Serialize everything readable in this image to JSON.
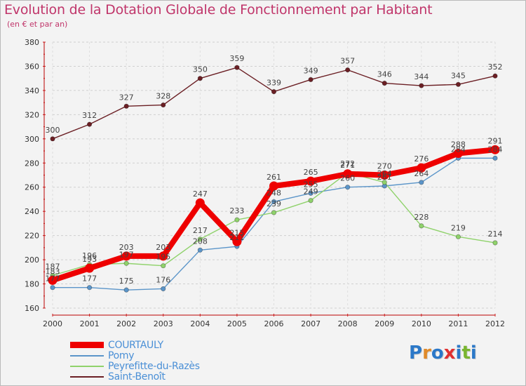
{
  "header": {
    "title": "Evolution de la Dotation Globale de Fonctionnement par Habitant",
    "subtitle": "(en € et par an)"
  },
  "chart_data": {
    "type": "line",
    "title": "Evolution de la Dotation Globale de Fonctionnement par Habitant",
    "subtitle": "(en € et par an)",
    "xlabel": "",
    "ylabel": "",
    "ylim": [
      160,
      380
    ],
    "yticks": [
      160,
      180,
      200,
      220,
      240,
      260,
      280,
      300,
      320,
      340,
      360,
      380
    ],
    "grid": "horizontal dashed",
    "legend": "bottom-left",
    "categories": [
      "2000",
      "2001",
      "2002",
      "2003",
      "2004",
      "2005",
      "2006",
      "2007",
      "2008",
      "2009",
      "2010",
      "2011",
      "2012"
    ],
    "series": [
      {
        "name": "Saint-Benoît",
        "color": "#6b1f24",
        "values": [
          300,
          312,
          327,
          328,
          350,
          359,
          339,
          349,
          357,
          346,
          344,
          345,
          352
        ]
      },
      {
        "name": "Pomy",
        "color": "#5b95c9",
        "values": [
          177,
          177,
          175,
          176,
          208,
          211,
          248,
          255,
          260,
          261,
          264,
          284,
          284
        ]
      },
      {
        "name": "Peyrefitte-du-Razès",
        "color": "#8fd26b",
        "values": [
          187,
          196,
          197,
          195,
          217,
          233,
          239,
          249,
          272,
          264,
          228,
          219,
          214
        ]
      },
      {
        "name": "COURTAULY",
        "color": "#ee0000",
        "values": [
          183,
          193,
          203,
          203,
          247,
          215,
          261,
          265,
          271,
          270,
          276,
          288,
          291
        ]
      }
    ]
  },
  "legend": {
    "items": [
      {
        "label": "COURTAULY",
        "color": "#ee0000"
      },
      {
        "label": "Pomy",
        "color": "#5b95c9"
      },
      {
        "label": "Peyrefitte-du-Razès",
        "color": "#8fd26b"
      },
      {
        "label": "Saint-Benoît",
        "color": "#6b1f24"
      }
    ]
  },
  "logo": {
    "letters": [
      "P",
      "r",
      "o",
      "x",
      "i",
      "t",
      "i"
    ],
    "colors": [
      "#2b78c8",
      "#e08a2a",
      "#2b78c8",
      "#e03030",
      "#2b78c8",
      "#79b530",
      "#2b78c8"
    ]
  }
}
